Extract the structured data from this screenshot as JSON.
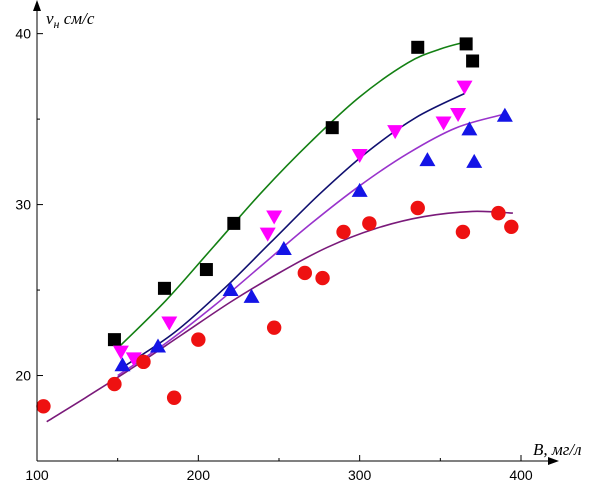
{
  "chart_data": {
    "type": "scatter",
    "title": "",
    "xlabel": "B, мг/л",
    "ylabel": "v",
    "ylabel_sub": "н",
    "ylabel_units": " см/с",
    "xlim": [
      100,
      400
    ],
    "ylim": [
      15,
      41.5
    ],
    "x_ticks": [
      100,
      200,
      300,
      400
    ],
    "x_tick_labels": [
      "100",
      "200",
      "300",
      "400"
    ],
    "y_ticks": [
      20,
      30,
      40
    ],
    "y_tick_labels": [
      "20",
      "30",
      "40"
    ],
    "grid": false,
    "legend": "none",
    "series": [
      {
        "marker": "square",
        "color": "#000000",
        "points": [
          [
            148,
            22.1
          ],
          [
            179,
            25.1
          ],
          [
            205,
            26.2
          ],
          [
            222,
            28.9
          ],
          [
            283,
            34.5
          ],
          [
            336,
            39.2
          ],
          [
            366,
            39.4
          ],
          [
            370,
            38.4
          ]
        ],
        "fit_color": "#138013",
        "fit": [
          [
            150,
            21.6
          ],
          [
            180,
            24.4
          ],
          [
            210,
            27.6
          ],
          [
            240,
            30.8
          ],
          [
            270,
            33.7
          ],
          [
            300,
            36.3
          ],
          [
            330,
            38.3
          ],
          [
            350,
            39.1
          ],
          [
            365,
            39.5
          ]
        ]
      },
      {
        "marker": "triangle-up",
        "color": "#1414e6",
        "points": [
          [
            153,
            20.6
          ],
          [
            175,
            21.7
          ],
          [
            220,
            25.0
          ],
          [
            233,
            24.6
          ],
          [
            253,
            27.4
          ],
          [
            300,
            30.8
          ],
          [
            342,
            32.6
          ],
          [
            368,
            34.4
          ],
          [
            371,
            32.5
          ],
          [
            390,
            35.2
          ]
        ],
        "fit_color": "#101070",
        "fit": [
          [
            155,
            20.6
          ],
          [
            185,
            22.5
          ],
          [
            215,
            25.0
          ],
          [
            245,
            27.8
          ],
          [
            275,
            30.6
          ],
          [
            305,
            33.1
          ],
          [
            335,
            35.1
          ],
          [
            365,
            36.5
          ]
        ]
      },
      {
        "marker": "triangle-down",
        "color": "#ff00ff",
        "points": [
          [
            152,
            21.4
          ],
          [
            160,
            21.0
          ],
          [
            182,
            23.1
          ],
          [
            243,
            28.3
          ],
          [
            247,
            29.3
          ],
          [
            300,
            32.9
          ],
          [
            322,
            34.3
          ],
          [
            352,
            34.8
          ],
          [
            361,
            35.3
          ],
          [
            365,
            36.9
          ]
        ],
        "fit_color": "#9933cc",
        "fit": [
          [
            150,
            20.0
          ],
          [
            180,
            21.9
          ],
          [
            210,
            24.1
          ],
          [
            240,
            26.5
          ],
          [
            270,
            28.9
          ],
          [
            300,
            31.1
          ],
          [
            330,
            33.0
          ],
          [
            360,
            34.5
          ],
          [
            390,
            35.3
          ]
        ]
      },
      {
        "marker": "circle",
        "color": "#ee1111",
        "points": [
          [
            104,
            18.2
          ],
          [
            148,
            19.5
          ],
          [
            166,
            20.8
          ],
          [
            185,
            18.7
          ],
          [
            200,
            22.1
          ],
          [
            247,
            22.8
          ],
          [
            266,
            26.0
          ],
          [
            277,
            25.7
          ],
          [
            290,
            28.4
          ],
          [
            306,
            28.9
          ],
          [
            336,
            29.8
          ],
          [
            364,
            28.4
          ],
          [
            386,
            29.5
          ],
          [
            394,
            28.7
          ]
        ],
        "fit_color": "#7a1a7a",
        "fit": [
          [
            106,
            17.3
          ],
          [
            130,
            18.7
          ],
          [
            160,
            20.5
          ],
          [
            190,
            22.4
          ],
          [
            220,
            24.3
          ],
          [
            250,
            26.0
          ],
          [
            280,
            27.5
          ],
          [
            310,
            28.6
          ],
          [
            340,
            29.3
          ],
          [
            370,
            29.6
          ],
          [
            395,
            29.5
          ]
        ]
      }
    ]
  }
}
